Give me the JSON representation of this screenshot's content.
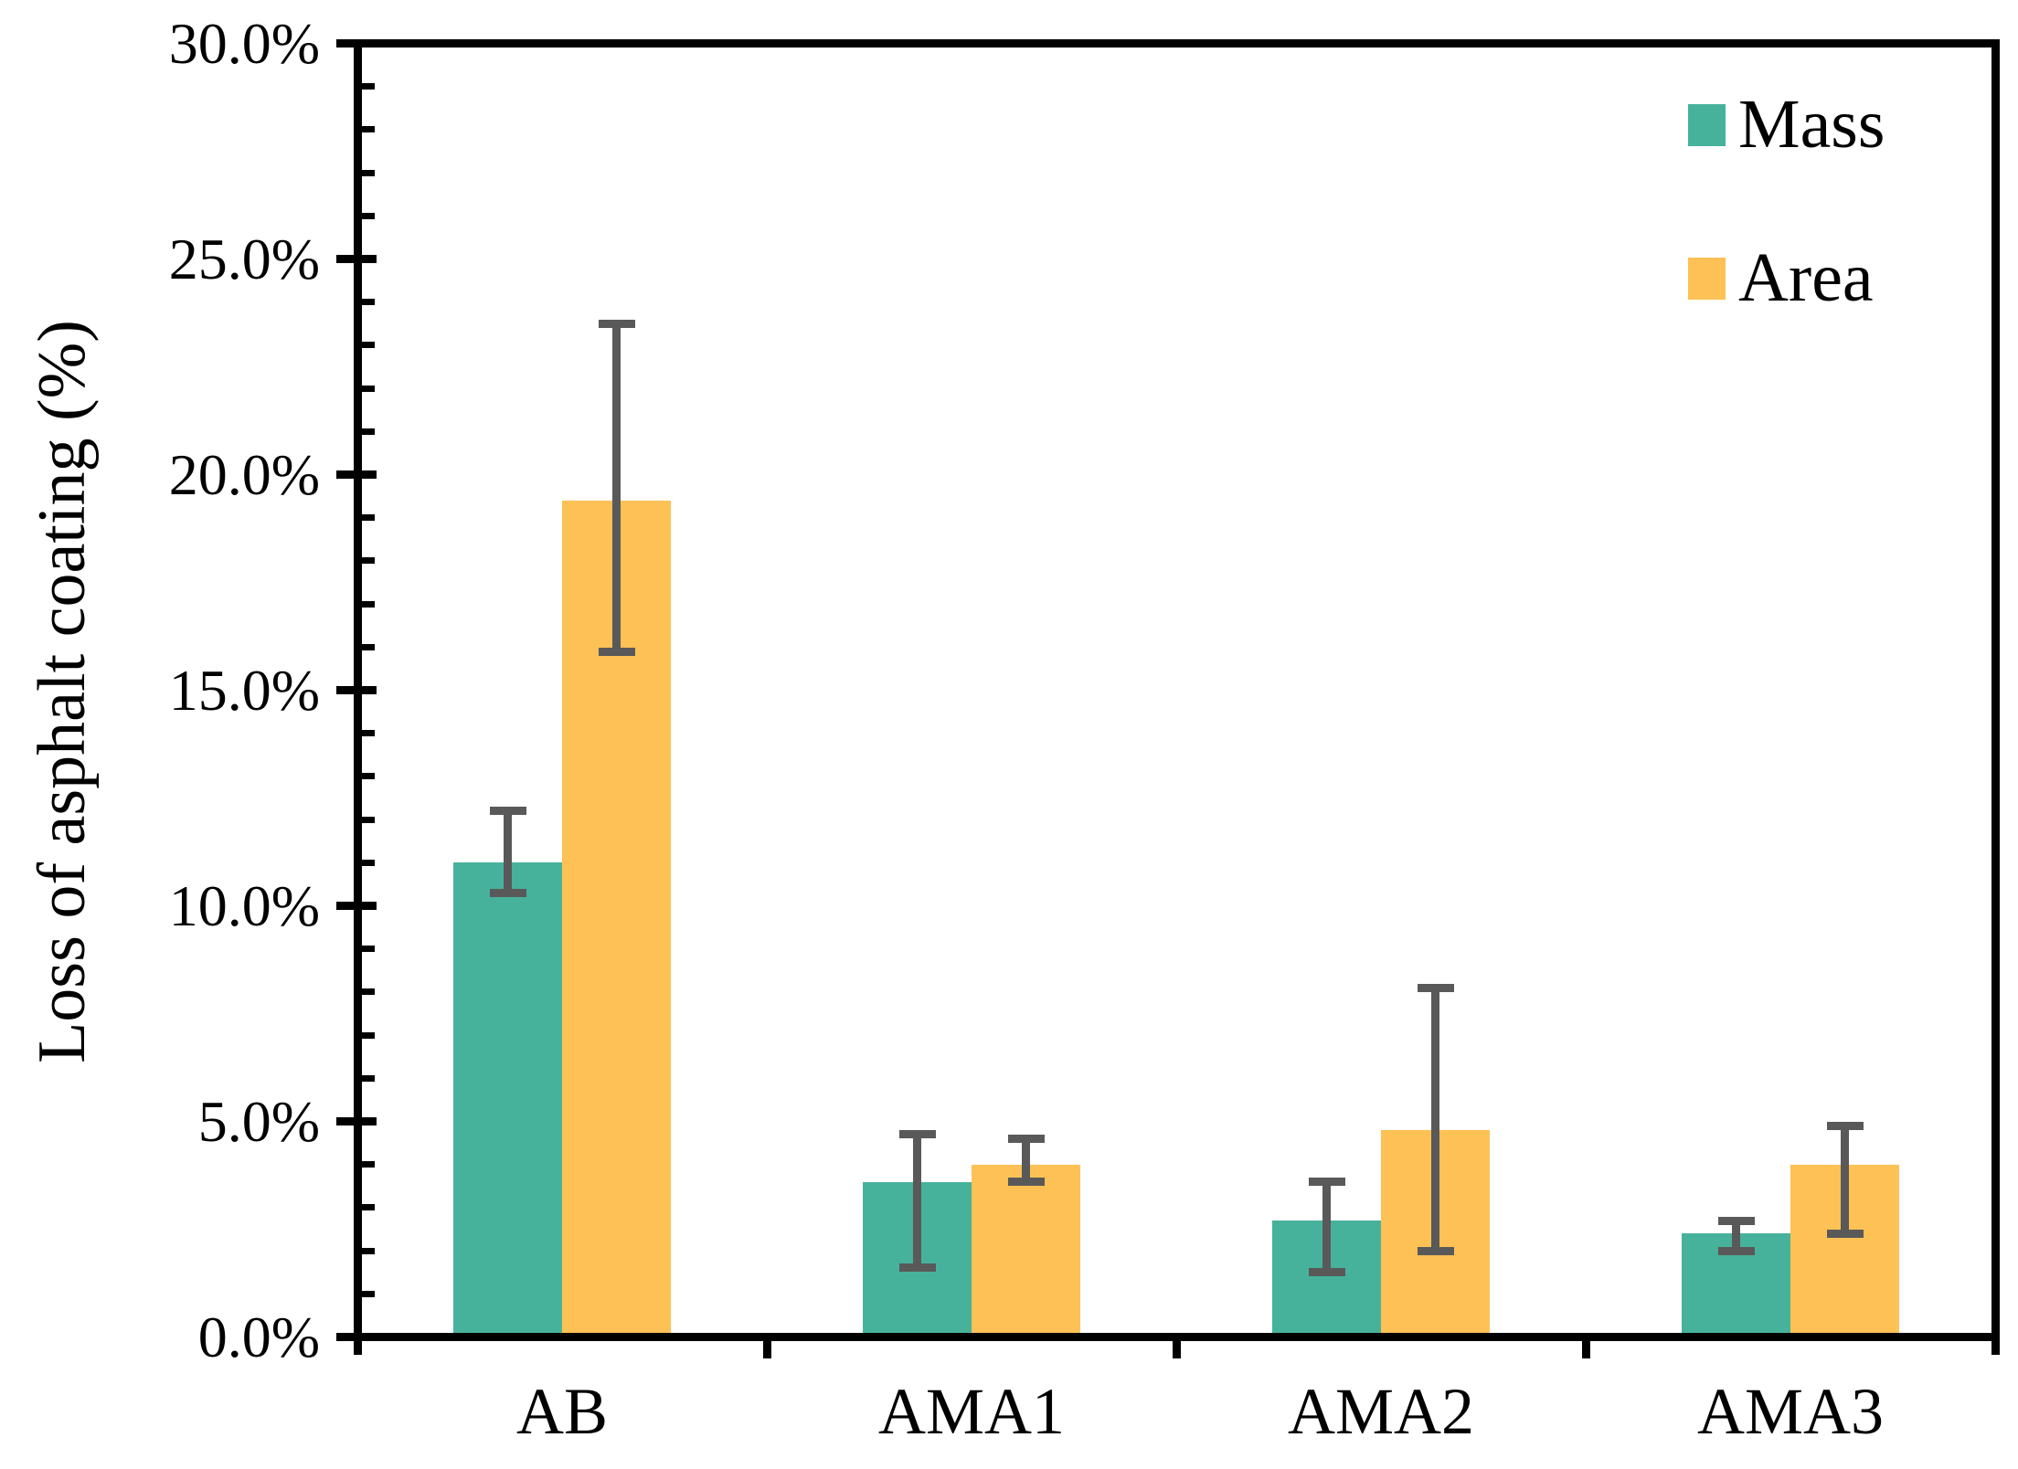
{
  "chart_data": {
    "type": "bar",
    "title": "",
    "xlabel": "",
    "ylabel": "Loss of asphalt coating (%)",
    "categories": [
      "AB",
      "AMA1",
      "AMA2",
      "AMA3"
    ],
    "series": [
      {
        "name": "Mass",
        "color": "#47B29B",
        "values": [
          11.0,
          3.6,
          2.7,
          2.4
        ],
        "error_plus": [
          1.2,
          1.1,
          0.9,
          0.3
        ],
        "error_minus": [
          0.7,
          2.0,
          1.2,
          0.4
        ]
      },
      {
        "name": "Area",
        "color": "#FDC155",
        "values": [
          19.4,
          4.0,
          4.8,
          4.0
        ],
        "error_plus": [
          4.1,
          0.6,
          3.3,
          0.9
        ],
        "error_minus": [
          3.5,
          0.4,
          2.8,
          1.6
        ]
      }
    ],
    "ylim": [
      0,
      30
    ],
    "y_major_step": 5,
    "y_minor_step": 1,
    "y_tick_labels": [
      "0.0%",
      "5.0%",
      "10.0%",
      "15.0%",
      "20.0%",
      "25.0%",
      "30.0%"
    ],
    "grid": "off",
    "legend_position": "top-right",
    "error_bar_color": "#595959",
    "axis_color": "#000000",
    "background_color": "#FFFFFF"
  }
}
